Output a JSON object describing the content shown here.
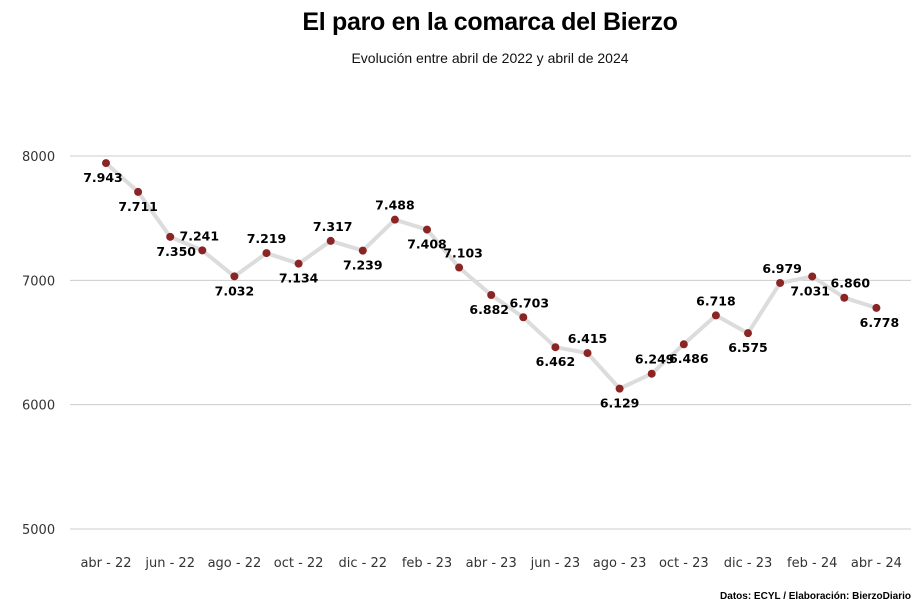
{
  "title": "El paro en la comarca del Bierzo",
  "subtitle": "Evolución entre abril de 2022 y abril de 2024",
  "source": "Datos: ECYL / Elaboración: BierzoDiario",
  "colors": {
    "line": "#dcdcdc",
    "marker": "#8b2525",
    "grid": "#cccccc"
  },
  "chart_data": {
    "type": "line",
    "title": "El paro en la comarca del Bierzo",
    "subtitle": "Evolución entre abril de 2022 y abril de 2024",
    "xlabel": "",
    "ylabel": "",
    "ylim": [
      5000,
      8000
    ],
    "yticks": [
      5000,
      6000,
      7000,
      8000
    ],
    "ytick_labels": [
      "5000",
      "6000",
      "7000",
      "8000"
    ],
    "grid": true,
    "x": [
      "abr-22",
      "may-22",
      "jun-22",
      "jul-22",
      "ago-22",
      "sep-22",
      "oct-22",
      "nov-22",
      "dic-22",
      "ene-23",
      "feb-23",
      "mar-23",
      "abr-23",
      "may-23",
      "jun-23",
      "jul-23",
      "ago-23",
      "sep-23",
      "oct-23",
      "nov-23",
      "dic-23",
      "ene-24",
      "feb-24",
      "mar-24",
      "abr-24"
    ],
    "xtick_labels": [
      "abr - 22",
      "jun - 22",
      "ago - 22",
      "oct - 22",
      "dic - 22",
      "feb - 23",
      "abr - 23",
      "jun - 23",
      "ago - 23",
      "oct - 23",
      "dic - 23",
      "feb - 24",
      "abr - 24"
    ],
    "values": [
      7943,
      7711,
      7350,
      7241,
      7032,
      7219,
      7134,
      7317,
      7239,
      7488,
      7408,
      7103,
      6882,
      6703,
      6462,
      6415,
      6129,
      6249,
      6486,
      6718,
      6575,
      6979,
      7031,
      6860,
      6778
    ],
    "data_labels": [
      "7.943",
      "7.711",
      "7.350",
      "7.241",
      "7.032",
      "7.219",
      "7.134",
      "7.317",
      "7.239",
      "7.488",
      "7.408",
      "7.103",
      "6.882",
      "6.703",
      "6.462",
      "6.415",
      "6.129",
      "6.249",
      "6.486",
      "6.718",
      "6.575",
      "6.979",
      "7.031",
      "6.860",
      "6.778"
    ]
  }
}
